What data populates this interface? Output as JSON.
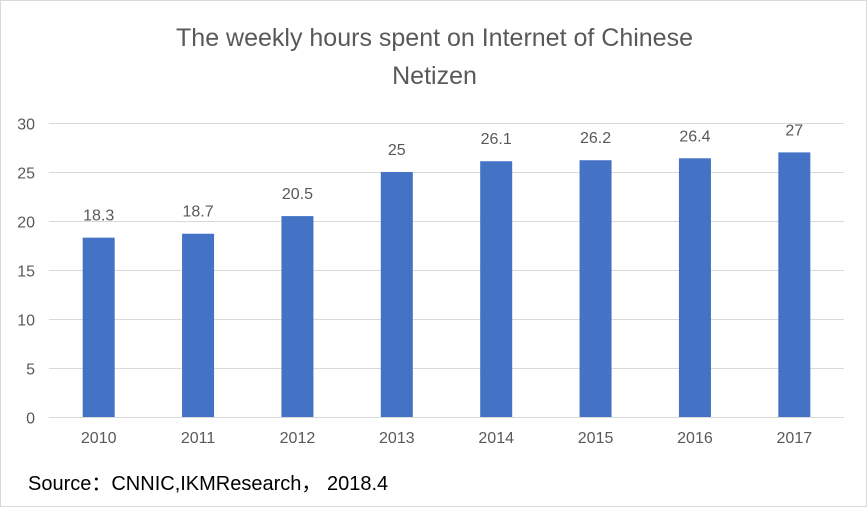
{
  "chart_data": {
    "type": "bar",
    "title_lines": [
      "The weekly hours spent on Internet of Chinese",
      "Netizen"
    ],
    "categories": [
      "2010",
      "2011",
      "2012",
      "2013",
      "2014",
      "2015",
      "2016",
      "2017"
    ],
    "values": [
      18.3,
      18.7,
      20.5,
      25,
      26.1,
      26.2,
      26.4,
      27
    ],
    "value_labels": [
      "18.3",
      "18.7",
      "20.5",
      "25",
      "26.1",
      "26.2",
      "26.4",
      "27"
    ],
    "y_ticks": [
      "0",
      "5",
      "10",
      "15",
      "20",
      "25",
      "30"
    ],
    "ylim": [
      0,
      30
    ],
    "grid": true,
    "legend": "none",
    "bar_color": "#4472c4",
    "grid_color": "#d9d9d9"
  },
  "footer": {
    "source": "Source：CNNIC,IKMResearch， 2018.4"
  }
}
